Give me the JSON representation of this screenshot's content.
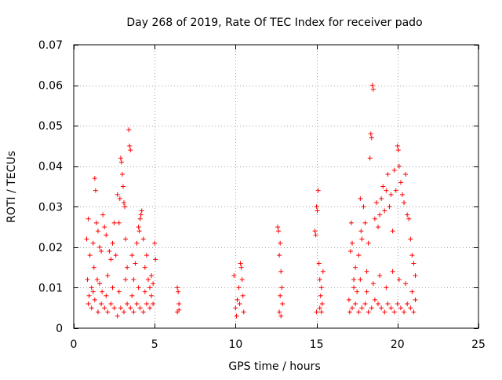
{
  "chart_data": {
    "type": "scatter",
    "title": "Day 268 of 2019, Rate Of TEC Index for receiver pado",
    "xlabel": "GPS time / hours",
    "ylabel": "ROTI / TECUs",
    "xlim": [
      0,
      25
    ],
    "ylim": [
      0,
      0.07
    ],
    "xticks": [
      0,
      5,
      10,
      15,
      20,
      25
    ],
    "xtick_labels": [
      "0",
      "5",
      "10",
      "15",
      "20",
      "25"
    ],
    "yticks": [
      0,
      0.01,
      0.02,
      0.03,
      0.04,
      0.05,
      0.06,
      0.07
    ],
    "ytick_labels": [
      "0",
      "0.01",
      "0.02",
      "0.03",
      "0.04",
      "0.05",
      "0.06",
      "0.07"
    ],
    "grid": true,
    "marker": "+",
    "color": "#ff0000",
    "series": [
      {
        "name": "ROTI",
        "points": [
          [
            0.8,
            0.022
          ],
          [
            0.85,
            0.012
          ],
          [
            0.9,
            0.027
          ],
          [
            0.95,
            0.008
          ],
          [
            1.0,
            0.018
          ],
          [
            1.1,
            0.01
          ],
          [
            1.2,
            0.021
          ],
          [
            1.25,
            0.015
          ],
          [
            1.3,
            0.037
          ],
          [
            1.35,
            0.034
          ],
          [
            1.4,
            0.026
          ],
          [
            1.45,
            0.012
          ],
          [
            1.5,
            0.024
          ],
          [
            1.6,
            0.02
          ],
          [
            1.7,
            0.019
          ],
          [
            1.75,
            0.009
          ],
          [
            1.8,
            0.028
          ],
          [
            1.9,
            0.025
          ],
          [
            2.0,
            0.023
          ],
          [
            2.1,
            0.013
          ],
          [
            2.2,
            0.019
          ],
          [
            2.3,
            0.017
          ],
          [
            2.4,
            0.021
          ],
          [
            2.5,
            0.026
          ],
          [
            2.6,
            0.018
          ],
          [
            2.7,
            0.033
          ],
          [
            2.8,
            0.026
          ],
          [
            2.85,
            0.032
          ],
          [
            2.9,
            0.042
          ],
          [
            2.95,
            0.041
          ],
          [
            3.0,
            0.038
          ],
          [
            3.05,
            0.035
          ],
          [
            3.1,
            0.031
          ],
          [
            3.15,
            0.03
          ],
          [
            3.2,
            0.022
          ],
          [
            3.3,
            0.015
          ],
          [
            3.4,
            0.049
          ],
          [
            3.45,
            0.045
          ],
          [
            3.5,
            0.044
          ],
          [
            3.6,
            0.018
          ],
          [
            3.7,
            0.012
          ],
          [
            3.8,
            0.016
          ],
          [
            3.9,
            0.021
          ],
          [
            4.0,
            0.025
          ],
          [
            4.05,
            0.024
          ],
          [
            4.1,
            0.027
          ],
          [
            4.15,
            0.028
          ],
          [
            4.2,
            0.029
          ],
          [
            4.3,
            0.022
          ],
          [
            4.4,
            0.015
          ],
          [
            4.5,
            0.018
          ],
          [
            4.6,
            0.012
          ],
          [
            4.7,
            0.01
          ],
          [
            4.8,
            0.013
          ],
          [
            4.9,
            0.011
          ],
          [
            5.0,
            0.021
          ],
          [
            5.05,
            0.017
          ],
          [
            0.9,
            0.006
          ],
          [
            1.1,
            0.005
          ],
          [
            1.3,
            0.007
          ],
          [
            1.5,
            0.004
          ],
          [
            1.7,
            0.006
          ],
          [
            1.9,
            0.005
          ],
          [
            2.1,
            0.004
          ],
          [
            2.3,
            0.006
          ],
          [
            2.5,
            0.005
          ],
          [
            2.7,
            0.003
          ],
          [
            2.9,
            0.005
          ],
          [
            3.1,
            0.004
          ],
          [
            3.3,
            0.006
          ],
          [
            3.5,
            0.005
          ],
          [
            3.7,
            0.004
          ],
          [
            3.9,
            0.006
          ],
          [
            4.1,
            0.005
          ],
          [
            4.3,
            0.004
          ],
          [
            4.5,
            0.006
          ],
          [
            4.7,
            0.005
          ],
          [
            4.9,
            0.006
          ],
          [
            1.2,
            0.009
          ],
          [
            1.6,
            0.011
          ],
          [
            2.0,
            0.008
          ],
          [
            2.4,
            0.01
          ],
          [
            2.8,
            0.009
          ],
          [
            3.2,
            0.012
          ],
          [
            3.6,
            0.008
          ],
          [
            4.0,
            0.01
          ],
          [
            4.4,
            0.009
          ],
          [
            4.8,
            0.008
          ],
          [
            6.4,
            0.01
          ],
          [
            6.45,
            0.009
          ],
          [
            6.5,
            0.006
          ],
          [
            6.4,
            0.004
          ],
          [
            6.5,
            0.0045
          ],
          [
            9.9,
            0.013
          ],
          [
            10.0,
            0.005
          ],
          [
            10.05,
            0.003
          ],
          [
            10.1,
            0.007
          ],
          [
            10.2,
            0.01
          ],
          [
            10.25,
            0.006
          ],
          [
            10.3,
            0.016
          ],
          [
            10.35,
            0.015
          ],
          [
            10.4,
            0.012
          ],
          [
            10.45,
            0.008
          ],
          [
            10.5,
            0.004
          ],
          [
            12.6,
            0.025
          ],
          [
            12.65,
            0.024
          ],
          [
            12.7,
            0.018
          ],
          [
            12.75,
            0.021
          ],
          [
            12.8,
            0.014
          ],
          [
            12.85,
            0.01
          ],
          [
            12.9,
            0.006
          ],
          [
            12.7,
            0.004
          ],
          [
            12.8,
            0.003
          ],
          [
            12.75,
            0.008
          ],
          [
            14.9,
            0.024
          ],
          [
            14.95,
            0.023
          ],
          [
            15.0,
            0.03
          ],
          [
            15.05,
            0.029
          ],
          [
            15.1,
            0.034
          ],
          [
            15.15,
            0.016
          ],
          [
            15.2,
            0.012
          ],
          [
            15.25,
            0.008
          ],
          [
            15.3,
            0.01
          ],
          [
            15.35,
            0.006
          ],
          [
            15.4,
            0.014
          ],
          [
            15.0,
            0.004
          ],
          [
            15.2,
            0.005
          ],
          [
            15.3,
            0.004
          ],
          [
            17.0,
            0.007
          ],
          [
            17.05,
            0.004
          ],
          [
            17.1,
            0.019
          ],
          [
            17.15,
            0.026
          ],
          [
            17.2,
            0.021
          ],
          [
            17.3,
            0.012
          ],
          [
            17.4,
            0.015
          ],
          [
            17.5,
            0.009
          ],
          [
            17.6,
            0.018
          ],
          [
            17.7,
            0.032
          ],
          [
            17.75,
            0.024
          ],
          [
            17.8,
            0.022
          ],
          [
            17.9,
            0.03
          ],
          [
            18.0,
            0.026
          ],
          [
            18.1,
            0.014
          ],
          [
            18.2,
            0.021
          ],
          [
            18.3,
            0.042
          ],
          [
            18.35,
            0.048
          ],
          [
            18.4,
            0.047
          ],
          [
            18.45,
            0.06
          ],
          [
            18.5,
            0.059
          ],
          [
            18.6,
            0.027
          ],
          [
            18.7,
            0.031
          ],
          [
            18.8,
            0.025
          ],
          [
            18.9,
            0.028
          ],
          [
            19.0,
            0.032
          ],
          [
            19.1,
            0.035
          ],
          [
            19.2,
            0.029
          ],
          [
            19.3,
            0.034
          ],
          [
            19.4,
            0.038
          ],
          [
            19.5,
            0.03
          ],
          [
            19.6,
            0.033
          ],
          [
            19.7,
            0.024
          ],
          [
            19.8,
            0.039
          ],
          [
            19.9,
            0.034
          ],
          [
            20.0,
            0.045
          ],
          [
            20.05,
            0.044
          ],
          [
            20.1,
            0.04
          ],
          [
            20.2,
            0.036
          ],
          [
            20.3,
            0.033
          ],
          [
            20.4,
            0.031
          ],
          [
            20.5,
            0.038
          ],
          [
            20.6,
            0.028
          ],
          [
            20.7,
            0.027
          ],
          [
            20.8,
            0.022
          ],
          [
            20.9,
            0.018
          ],
          [
            21.0,
            0.016
          ],
          [
            21.1,
            0.013
          ],
          [
            17.2,
            0.005
          ],
          [
            17.4,
            0.006
          ],
          [
            17.6,
            0.004
          ],
          [
            17.8,
            0.005
          ],
          [
            18.0,
            0.006
          ],
          [
            18.2,
            0.004
          ],
          [
            18.4,
            0.005
          ],
          [
            18.6,
            0.007
          ],
          [
            18.8,
            0.006
          ],
          [
            19.0,
            0.005
          ],
          [
            19.2,
            0.004
          ],
          [
            19.4,
            0.006
          ],
          [
            19.6,
            0.005
          ],
          [
            19.8,
            0.004
          ],
          [
            20.0,
            0.006
          ],
          [
            20.2,
            0.005
          ],
          [
            20.4,
            0.004
          ],
          [
            20.6,
            0.006
          ],
          [
            20.8,
            0.005
          ],
          [
            21.0,
            0.004
          ],
          [
            21.1,
            0.007
          ],
          [
            17.3,
            0.01
          ],
          [
            17.7,
            0.012
          ],
          [
            18.1,
            0.009
          ],
          [
            18.5,
            0.011
          ],
          [
            18.9,
            0.013
          ],
          [
            19.3,
            0.01
          ],
          [
            19.7,
            0.014
          ],
          [
            20.1,
            0.012
          ],
          [
            20.5,
            0.011
          ],
          [
            20.9,
            0.009
          ]
        ]
      }
    ]
  }
}
